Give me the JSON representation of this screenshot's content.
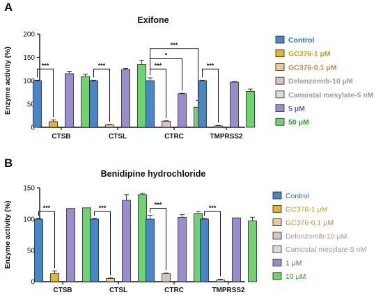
{
  "chart_data": [
    {
      "type": "bar",
      "panel_label": "A",
      "title": "Exifone",
      "ylabel": "Enzyme activity (%)",
      "xlabel": "",
      "ylim": [
        0,
        200
      ],
      "yticks": [
        0,
        50,
        100,
        150,
        200
      ],
      "categories": [
        "CTSB",
        "CTSL",
        "CTRC",
        "TMPRSS2"
      ],
      "legend_position": "right",
      "legend_bold": true,
      "series": [
        {
          "name": "Control",
          "color": "#4a86c7",
          "values": [
            100,
            100,
            100,
            100
          ],
          "errors": [
            1,
            1,
            6,
            1
          ]
        },
        {
          "name": "GC376-1 μM",
          "color": "#e6b52e",
          "values": [
            12,
            null,
            null,
            null
          ],
          "errors": [
            4,
            0,
            0,
            0
          ]
        },
        {
          "name": "GC376-0.1 μM",
          "color": "#eec998",
          "values": [
            null,
            5,
            null,
            null
          ],
          "errors": [
            0,
            1,
            0,
            0
          ]
        },
        {
          "name": "Delonzomib-10 μM",
          "color": "#d8c4be",
          "values": [
            null,
            null,
            13,
            null
          ],
          "errors": [
            0,
            0,
            1,
            0
          ]
        },
        {
          "name": "Camostal mesylate-5 nM",
          "color": "#dcdcdc",
          "values": [
            null,
            null,
            null,
            3
          ],
          "errors": [
            0,
            0,
            0,
            1
          ]
        },
        {
          "name": "5 μM",
          "color": "#9b8dcc",
          "values": [
            115,
            124,
            72,
            97
          ],
          "errors": [
            5,
            2,
            1,
            1
          ]
        },
        {
          "name": "50 μM",
          "color": "#6fd36f",
          "values": [
            109,
            135,
            43,
            77
          ],
          "errors": [
            5,
            9,
            15,
            5
          ]
        }
      ],
      "significance": [
        {
          "category": "CTSB",
          "from_series": "Control",
          "to_series": "GC376-1 μM",
          "label": "***"
        },
        {
          "category": "CTSL",
          "from_series": "Control",
          "to_series": "GC376-0.1 μM",
          "label": "***"
        },
        {
          "category": "CTRC",
          "from_series": "Control",
          "to_series": "Delonzomib-10 μM",
          "label": "***"
        },
        {
          "category": "CTRC",
          "from_series": "Control",
          "to_series": "5 μM",
          "label": "*"
        },
        {
          "category": "CTRC",
          "from_series": "Control",
          "to_series": "50 μM",
          "label": "***"
        },
        {
          "category": "TMPRSS2",
          "from_series": "Control",
          "to_series": "Camostal mesylate-5 nM",
          "label": "***"
        }
      ]
    },
    {
      "type": "bar",
      "panel_label": "B",
      "title": "Benidipine hydrochloride",
      "ylabel": "Enzyme activity (%)",
      "xlabel": "",
      "ylim": [
        0,
        150
      ],
      "yticks": [
        0,
        50,
        100,
        150
      ],
      "categories": [
        "CTSB",
        "CTSL",
        "CTRC",
        "TMPRSS2"
      ],
      "legend_position": "right",
      "legend_bold": false,
      "series": [
        {
          "name": "Control",
          "color": "#4a86c7",
          "values": [
            100,
            100,
            100,
            100
          ],
          "errors": [
            1,
            1,
            6,
            1
          ]
        },
        {
          "name": "GC376-1 μM",
          "color": "#e6b52e",
          "values": [
            13,
            null,
            null,
            null
          ],
          "errors": [
            4,
            0,
            0,
            0
          ]
        },
        {
          "name": "GC376-0.1 μM",
          "color": "#eec998",
          "values": [
            null,
            5,
            null,
            null
          ],
          "errors": [
            0,
            1,
            0,
            0
          ]
        },
        {
          "name": "Delonzomib-10 μM",
          "color": "#d8c4be",
          "values": [
            null,
            null,
            13,
            null
          ],
          "errors": [
            0,
            0,
            1,
            0
          ]
        },
        {
          "name": "Camostal mesylate-5 nM",
          "color": "#dcdcdc",
          "values": [
            null,
            null,
            null,
            3
          ],
          "errors": [
            0,
            0,
            0,
            1
          ]
        },
        {
          "name": "1 μM",
          "color": "#9b8dcc",
          "values": [
            117,
            130,
            103,
            102
          ],
          "errors": [
            0,
            9,
            4,
            0
          ]
        },
        {
          "name": "10 μM",
          "color": "#6fd36f",
          "values": [
            118,
            139,
            109,
            97
          ],
          "errors": [
            0,
            2,
            3,
            6
          ]
        }
      ],
      "significance": [
        {
          "category": "CTSB",
          "from_series": "Control",
          "to_series": "GC376-1 μM",
          "label": "***"
        },
        {
          "category": "CTSL",
          "from_series": "Control",
          "to_series": "GC376-0.1 μM",
          "label": "***"
        },
        {
          "category": "CTRC",
          "from_series": "Control",
          "to_series": "Delonzomib-10 μM",
          "label": "***"
        },
        {
          "category": "TMPRSS2",
          "from_series": "Control",
          "to_series": "Camostal mesylate-5 nM",
          "label": "***"
        }
      ]
    }
  ]
}
